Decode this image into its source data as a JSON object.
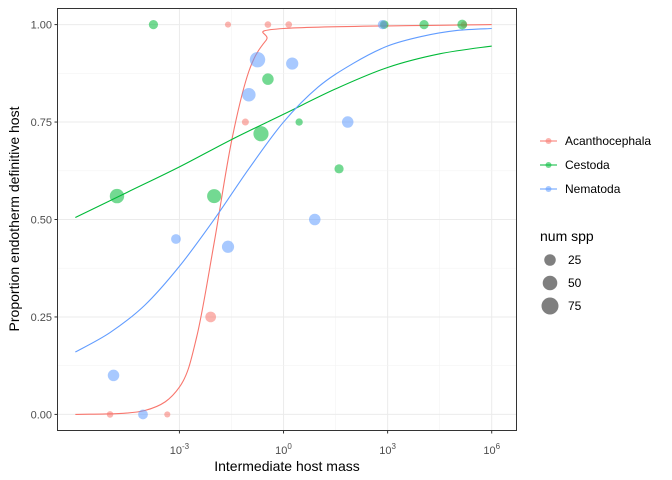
{
  "chart_data": {
    "type": "scatter",
    "xlabel": "Intermediate host mass",
    "ylabel": "Proportion endotherm definitive host",
    "x_scale": "log10",
    "xlim_log10": [
      -6.5,
      6.7
    ],
    "ylim": [
      -0.04,
      1.04
    ],
    "x_ticks": [
      {
        "pow": -3,
        "base": "10",
        "exp": "-3"
      },
      {
        "pow": 0,
        "base": "10",
        "exp": "0"
      },
      {
        "pow": 3,
        "base": "10",
        "exp": "3"
      },
      {
        "pow": 6,
        "base": "10",
        "exp": "6"
      }
    ],
    "y_ticks": [
      {
        "value": 0.0,
        "label": "0.00"
      },
      {
        "value": 0.25,
        "label": "0.25"
      },
      {
        "value": 0.5,
        "label": "0.50"
      },
      {
        "value": 0.75,
        "label": "0.75"
      },
      {
        "value": 1.0,
        "label": "1.00"
      }
    ],
    "grid": true,
    "legend_position": "right",
    "series": [
      {
        "name": "Acanthocephala",
        "color": "#F8766D",
        "points": [
          {
            "x_log10": -5.0,
            "y": 0.0,
            "n": 3
          },
          {
            "x_log10": -3.35,
            "y": 0.0,
            "n": 2
          },
          {
            "x_log10": -2.1,
            "y": 0.25,
            "n": 20
          },
          {
            "x_log10": -1.1,
            "y": 0.75,
            "n": 4
          },
          {
            "x_log10": -1.6,
            "y": 1.0,
            "n": 2
          },
          {
            "x_log10": -0.45,
            "y": 1.0,
            "n": 3
          },
          {
            "x_log10": 0.15,
            "y": 1.0,
            "n": 3
          },
          {
            "x_log10": 2.9,
            "y": 1.0,
            "n": 3
          },
          {
            "x_log10": 5.2,
            "y": 1.0,
            "n": 3
          }
        ],
        "curve": [
          {
            "x_log10": -6.0,
            "y": 0.0
          },
          {
            "x_log10": -4.0,
            "y": 0.01
          },
          {
            "x_log10": -3.0,
            "y": 0.07
          },
          {
            "x_log10": -2.5,
            "y": 0.2
          },
          {
            "x_log10": -2.0,
            "y": 0.44
          },
          {
            "x_log10": -1.5,
            "y": 0.7
          },
          {
            "x_log10": -1.0,
            "y": 0.88
          },
          {
            "x_log10": -0.5,
            "y": 0.96
          },
          {
            "x_log10": 0.0,
            "y": 0.99
          },
          {
            "x_log10": 6.0,
            "y": 1.0
          }
        ]
      },
      {
        "name": "Cestoda",
        "color": "#00BA38",
        "points": [
          {
            "x_log10": -4.8,
            "y": 0.56,
            "n": 48
          },
          {
            "x_log10": -3.75,
            "y": 1.0,
            "n": 12
          },
          {
            "x_log10": -2.0,
            "y": 0.56,
            "n": 45
          },
          {
            "x_log10": -0.65,
            "y": 0.72,
            "n": 55
          },
          {
            "x_log10": -0.45,
            "y": 0.86,
            "n": 25
          },
          {
            "x_log10": 0.45,
            "y": 0.75,
            "n": 5
          },
          {
            "x_log10": 1.6,
            "y": 0.63,
            "n": 12
          },
          {
            "x_log10": 2.9,
            "y": 1.0,
            "n": 10
          },
          {
            "x_log10": 4.05,
            "y": 1.0,
            "n": 12
          },
          {
            "x_log10": 5.15,
            "y": 1.0,
            "n": 15
          }
        ],
        "curve": [
          {
            "x_log10": -6.0,
            "y": 0.505
          },
          {
            "x_log10": -4.5,
            "y": 0.57
          },
          {
            "x_log10": -3.0,
            "y": 0.635
          },
          {
            "x_log10": -1.5,
            "y": 0.705
          },
          {
            "x_log10": 0.0,
            "y": 0.77
          },
          {
            "x_log10": 1.5,
            "y": 0.835
          },
          {
            "x_log10": 3.0,
            "y": 0.89
          },
          {
            "x_log10": 4.5,
            "y": 0.925
          },
          {
            "x_log10": 6.0,
            "y": 0.945
          }
        ]
      },
      {
        "name": "Nematoda",
        "color": "#619CFF",
        "points": [
          {
            "x_log10": -4.9,
            "y": 0.1,
            "n": 25
          },
          {
            "x_log10": -4.05,
            "y": 0.0,
            "n": 15
          },
          {
            "x_log10": -3.1,
            "y": 0.45,
            "n": 15
          },
          {
            "x_log10": -1.6,
            "y": 0.43,
            "n": 30
          },
          {
            "x_log10": -1.0,
            "y": 0.82,
            "n": 40
          },
          {
            "x_log10": -0.75,
            "y": 0.91,
            "n": 58
          },
          {
            "x_log10": 0.25,
            "y": 0.9,
            "n": 30
          },
          {
            "x_log10": 0.9,
            "y": 0.5,
            "n": 25
          },
          {
            "x_log10": 1.85,
            "y": 0.75,
            "n": 25
          },
          {
            "x_log10": 2.85,
            "y": 1.0,
            "n": 12
          }
        ],
        "curve": [
          {
            "x_log10": -6.0,
            "y": 0.16
          },
          {
            "x_log10": -5.0,
            "y": 0.21
          },
          {
            "x_log10": -4.0,
            "y": 0.28
          },
          {
            "x_log10": -3.0,
            "y": 0.38
          },
          {
            "x_log10": -2.0,
            "y": 0.5
          },
          {
            "x_log10": -1.0,
            "y": 0.63
          },
          {
            "x_log10": 0.0,
            "y": 0.75
          },
          {
            "x_log10": 1.0,
            "y": 0.84
          },
          {
            "x_log10": 2.0,
            "y": 0.9
          },
          {
            "x_log10": 3.0,
            "y": 0.945
          },
          {
            "x_log10": 4.0,
            "y": 0.97
          },
          {
            "x_log10": 5.0,
            "y": 0.985
          },
          {
            "x_log10": 6.0,
            "y": 0.99
          }
        ]
      }
    ],
    "size_legend": {
      "title": "num spp",
      "entries": [
        {
          "value": 25,
          "label": "25"
        },
        {
          "value": 50,
          "label": "50"
        },
        {
          "value": 75,
          "label": "75"
        }
      ]
    }
  }
}
